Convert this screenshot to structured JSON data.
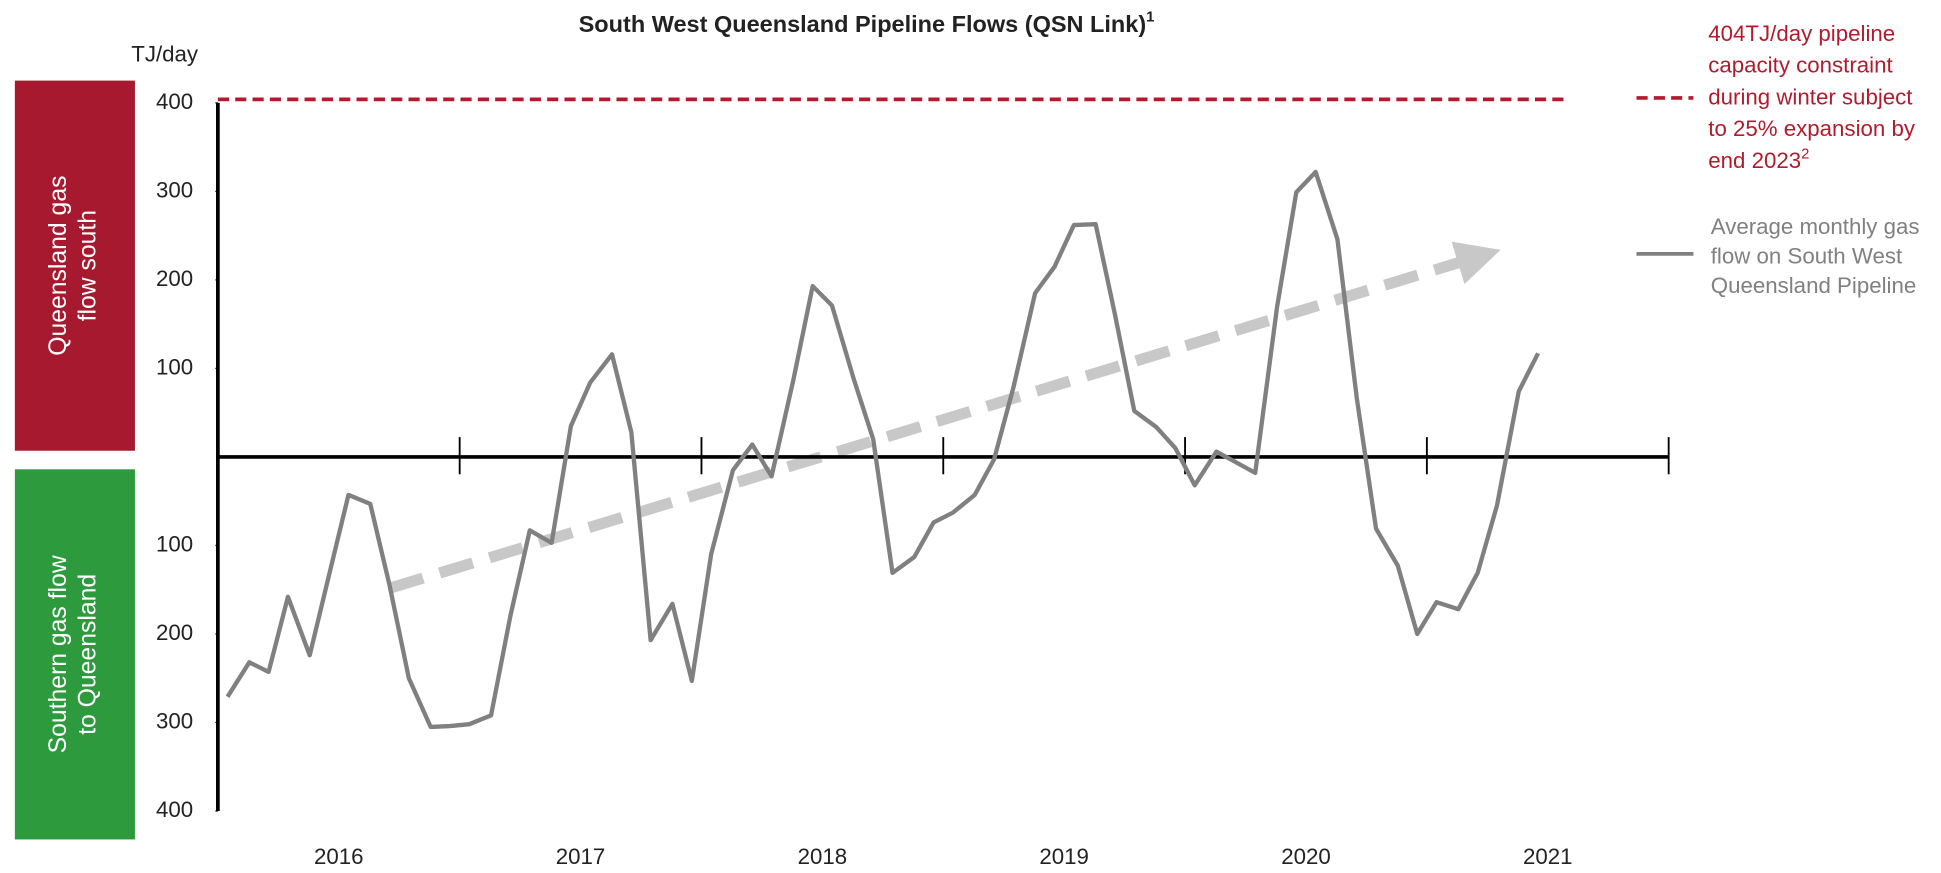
{
  "chart_data": {
    "type": "line",
    "title": "South West Queensland Pipeline Flows (QSN Link)",
    "title_sup": "1",
    "y_unit": "TJ/day",
    "side_labels": [
      {
        "lines": [
          "Queensland gas",
          "flow south"
        ],
        "color": "#a6192e"
      },
      {
        "lines": [
          "Southern gas flow",
          "to Queensland"
        ],
        "color": "#2e9a3e"
      }
    ],
    "xlim": [
      2016,
      2022
    ],
    "xticks": [
      {
        "value": 2016.5,
        "label": "2016"
      },
      {
        "value": 2017.5,
        "label": "2017"
      },
      {
        "value": 2018.5,
        "label": "2018"
      },
      {
        "value": 2019.5,
        "label": "2019"
      },
      {
        "value": 2020.5,
        "label": "2020"
      },
      {
        "value": 2021.5,
        "label": "2021"
      }
    ],
    "ylim": [
      -400,
      400
    ],
    "yticks": [
      400,
      300,
      200,
      100,
      {
        "value": -100,
        "label": "100"
      },
      {
        "value": -200,
        "label": "200"
      },
      {
        "value": -300,
        "label": "300"
      },
      {
        "value": -400,
        "label": "400"
      }
    ],
    "reference_lines": [
      {
        "name_lines": [
          "404TJ/day pipeline",
          "capacity constraint",
          "during winter subject",
          "to 25% expansion by",
          "end 2023"
        ],
        "name_sup": "2",
        "value": 404,
        "color": "#b01c2e"
      }
    ],
    "series": [
      {
        "name_lines": [
          "Average monthly gas",
          "flow on South West",
          "Queensland Pipeline"
        ],
        "color": "#808080",
        "x": [
          2016.04,
          2016.13,
          2016.21,
          2016.29,
          2016.38,
          2016.46,
          2016.54,
          2016.63,
          2016.71,
          2016.79,
          2016.88,
          2016.96,
          2017.04,
          2017.13,
          2017.21,
          2017.29,
          2017.38,
          2017.46,
          2017.54,
          2017.63,
          2017.71,
          2017.79,
          2017.88,
          2017.96,
          2018.04,
          2018.13,
          2018.21,
          2018.29,
          2018.38,
          2018.46,
          2018.54,
          2018.63,
          2018.71,
          2018.79,
          2018.88,
          2018.96,
          2019.04,
          2019.13,
          2019.21,
          2019.29,
          2019.38,
          2019.46,
          2019.54,
          2019.63,
          2019.71,
          2019.79,
          2019.88,
          2019.96,
          2020.04,
          2020.13,
          2020.21,
          2020.29,
          2020.38,
          2020.46,
          2020.54,
          2020.63,
          2020.71,
          2020.79,
          2020.88,
          2020.96,
          2021.04,
          2021.13,
          2021.21,
          2021.29,
          2021.38,
          2021.46
        ],
        "values": [
          -271,
          -232,
          -243,
          -158,
          -224,
          -133,
          -43,
          -53,
          -145,
          -250,
          -305,
          -304,
          -302,
          -292,
          -179,
          -83,
          -97,
          35,
          84,
          116,
          28,
          -207,
          -166,
          -253,
          -110,
          -15,
          14,
          -22,
          87,
          193,
          171,
          88,
          20,
          -131,
          -113,
          -74,
          -63,
          -43,
          -3,
          78,
          185,
          215,
          262,
          263,
          161,
          52,
          34,
          10,
          -32,
          6,
          -6,
          -18,
          169,
          299,
          322,
          246,
          67,
          -81,
          -123,
          -200,
          -164,
          -172,
          -131,
          -55,
          74,
          117
        ]
      }
    ]
  }
}
